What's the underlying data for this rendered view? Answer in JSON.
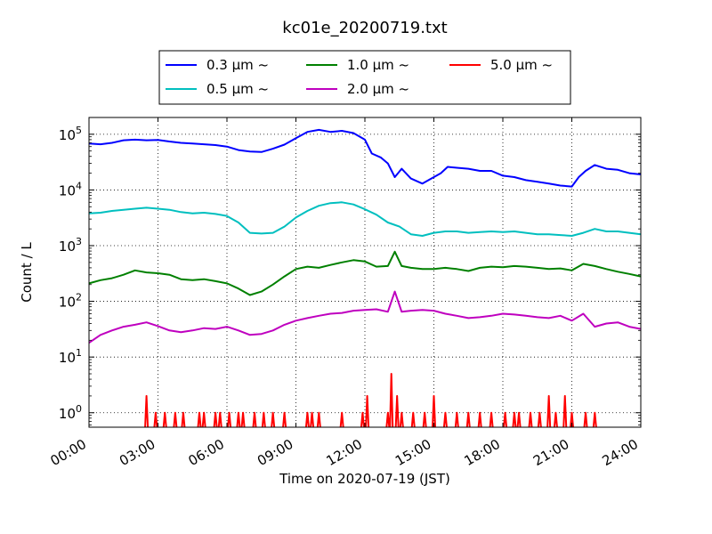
{
  "chart_data": {
    "type": "line",
    "title": "kc01e_20200719.txt",
    "xlabel": "Time on 2020-07-19 (JST)",
    "ylabel": "Count / L",
    "yscale": "log",
    "ylim": [
      0.55,
      200000
    ],
    "xlim_hours": [
      0,
      24
    ],
    "x_ticks": [
      "00:00",
      "03:00",
      "06:00",
      "09:00",
      "12:00",
      "15:00",
      "18:00",
      "21:00",
      "24:00"
    ],
    "y_tick_values": [
      1,
      10,
      100,
      1000,
      10000,
      100000
    ],
    "y_tick_labels": [
      {
        "base": "10",
        "exp": "0"
      },
      {
        "base": "10",
        "exp": "1"
      },
      {
        "base": "10",
        "exp": "2"
      },
      {
        "base": "10",
        "exp": "3"
      },
      {
        "base": "10",
        "exp": "4"
      },
      {
        "base": "10",
        "exp": "5"
      }
    ],
    "grid": true,
    "legend_position": "top-center",
    "series": [
      {
        "name": "0.3 μm ~",
        "color": "#0000ff",
        "points": [
          [
            0,
            68000
          ],
          [
            0.5,
            66000
          ],
          [
            1,
            70000
          ],
          [
            1.5,
            78000
          ],
          [
            2,
            80000
          ],
          [
            2.5,
            78000
          ],
          [
            3,
            79000
          ],
          [
            3.5,
            74000
          ],
          [
            4,
            70000
          ],
          [
            4.5,
            68000
          ],
          [
            5,
            66000
          ],
          [
            5.5,
            64000
          ],
          [
            6,
            60000
          ],
          [
            6.5,
            52000
          ],
          [
            7,
            49000
          ],
          [
            7.5,
            48000
          ],
          [
            8,
            55000
          ],
          [
            8.5,
            65000
          ],
          [
            9,
            85000
          ],
          [
            9.5,
            110000
          ],
          [
            10,
            120000
          ],
          [
            10.5,
            110000
          ],
          [
            11,
            115000
          ],
          [
            11.5,
            105000
          ],
          [
            12,
            80000
          ],
          [
            12.3,
            45000
          ],
          [
            12.7,
            38000
          ],
          [
            13,
            30000
          ],
          [
            13.3,
            17000
          ],
          [
            13.6,
            24000
          ],
          [
            14,
            16000
          ],
          [
            14.5,
            13000
          ],
          [
            15,
            17000
          ],
          [
            15.3,
            20000
          ],
          [
            15.6,
            26000
          ],
          [
            16,
            25000
          ],
          [
            16.5,
            24000
          ],
          [
            17,
            22000
          ],
          [
            17.5,
            22000
          ],
          [
            18,
            18000
          ],
          [
            18.5,
            17000
          ],
          [
            19,
            15000
          ],
          [
            19.5,
            14000
          ],
          [
            20,
            13000
          ],
          [
            20.5,
            12000
          ],
          [
            21,
            11500
          ],
          [
            21.3,
            17000
          ],
          [
            21.6,
            22000
          ],
          [
            22,
            28000
          ],
          [
            22.5,
            24000
          ],
          [
            23,
            23000
          ],
          [
            23.5,
            20000
          ],
          [
            24,
            19000
          ]
        ]
      },
      {
        "name": "0.5 μm ~",
        "color": "#00bfbf",
        "points": [
          [
            0,
            3800
          ],
          [
            0.5,
            3900
          ],
          [
            1,
            4200
          ],
          [
            1.5,
            4400
          ],
          [
            2,
            4600
          ],
          [
            2.5,
            4800
          ],
          [
            3,
            4600
          ],
          [
            3.5,
            4400
          ],
          [
            4,
            4000
          ],
          [
            4.5,
            3800
          ],
          [
            5,
            3900
          ],
          [
            5.5,
            3700
          ],
          [
            6,
            3400
          ],
          [
            6.5,
            2600
          ],
          [
            7,
            1700
          ],
          [
            7.5,
            1650
          ],
          [
            8,
            1700
          ],
          [
            8.5,
            2200
          ],
          [
            9,
            3200
          ],
          [
            9.5,
            4200
          ],
          [
            10,
            5200
          ],
          [
            10.5,
            5800
          ],
          [
            11,
            6000
          ],
          [
            11.5,
            5500
          ],
          [
            12,
            4500
          ],
          [
            12.5,
            3600
          ],
          [
            13,
            2600
          ],
          [
            13.5,
            2200
          ],
          [
            14,
            1600
          ],
          [
            14.5,
            1500
          ],
          [
            15,
            1700
          ],
          [
            15.5,
            1800
          ],
          [
            16,
            1800
          ],
          [
            16.5,
            1700
          ],
          [
            17,
            1750
          ],
          [
            17.5,
            1800
          ],
          [
            18,
            1750
          ],
          [
            18.5,
            1800
          ],
          [
            19,
            1700
          ],
          [
            19.5,
            1600
          ],
          [
            20,
            1600
          ],
          [
            20.5,
            1550
          ],
          [
            21,
            1500
          ],
          [
            21.5,
            1700
          ],
          [
            22,
            2000
          ],
          [
            22.5,
            1800
          ],
          [
            23,
            1800
          ],
          [
            23.5,
            1700
          ],
          [
            24,
            1600
          ]
        ]
      },
      {
        "name": "1.0 μm ~",
        "color": "#008000",
        "points": [
          [
            0,
            210
          ],
          [
            0.5,
            240
          ],
          [
            1,
            260
          ],
          [
            1.5,
            300
          ],
          [
            2,
            360
          ],
          [
            2.5,
            330
          ],
          [
            3,
            320
          ],
          [
            3.5,
            300
          ],
          [
            4,
            250
          ],
          [
            4.5,
            240
          ],
          [
            5,
            250
          ],
          [
            5.5,
            230
          ],
          [
            6,
            210
          ],
          [
            6.5,
            170
          ],
          [
            7,
            130
          ],
          [
            7.5,
            150
          ],
          [
            8,
            200
          ],
          [
            8.5,
            280
          ],
          [
            9,
            380
          ],
          [
            9.5,
            420
          ],
          [
            10,
            400
          ],
          [
            10.5,
            450
          ],
          [
            11,
            500
          ],
          [
            11.5,
            550
          ],
          [
            12,
            520
          ],
          [
            12.5,
            420
          ],
          [
            13,
            430
          ],
          [
            13.3,
            780
          ],
          [
            13.6,
            430
          ],
          [
            14,
            400
          ],
          [
            14.5,
            380
          ],
          [
            15,
            380
          ],
          [
            15.5,
            400
          ],
          [
            16,
            380
          ],
          [
            16.5,
            350
          ],
          [
            17,
            400
          ],
          [
            17.5,
            420
          ],
          [
            18,
            410
          ],
          [
            18.5,
            430
          ],
          [
            19,
            420
          ],
          [
            19.5,
            400
          ],
          [
            20,
            380
          ],
          [
            20.5,
            390
          ],
          [
            21,
            360
          ],
          [
            21.5,
            470
          ],
          [
            22,
            430
          ],
          [
            22.5,
            380
          ],
          [
            23,
            340
          ],
          [
            23.5,
            310
          ],
          [
            24,
            280
          ]
        ]
      },
      {
        "name": "2.0 μm ~",
        "color": "#bf00bf",
        "points": [
          [
            0,
            18
          ],
          [
            0.5,
            25
          ],
          [
            1,
            30
          ],
          [
            1.5,
            35
          ],
          [
            2,
            38
          ],
          [
            2.5,
            42
          ],
          [
            3,
            36
          ],
          [
            3.5,
            30
          ],
          [
            4,
            28
          ],
          [
            4.5,
            30
          ],
          [
            5,
            33
          ],
          [
            5.5,
            32
          ],
          [
            6,
            35
          ],
          [
            6.5,
            30
          ],
          [
            7,
            25
          ],
          [
            7.5,
            26
          ],
          [
            8,
            30
          ],
          [
            8.5,
            38
          ],
          [
            9,
            45
          ],
          [
            9.5,
            50
          ],
          [
            10,
            55
          ],
          [
            10.5,
            60
          ],
          [
            11,
            62
          ],
          [
            11.5,
            68
          ],
          [
            12,
            70
          ],
          [
            12.5,
            72
          ],
          [
            13,
            65
          ],
          [
            13.3,
            150
          ],
          [
            13.6,
            65
          ],
          [
            14,
            68
          ],
          [
            14.5,
            70
          ],
          [
            15,
            68
          ],
          [
            15.5,
            60
          ],
          [
            16,
            55
          ],
          [
            16.5,
            50
          ],
          [
            17,
            52
          ],
          [
            17.5,
            55
          ],
          [
            18,
            60
          ],
          [
            18.5,
            58
          ],
          [
            19,
            55
          ],
          [
            19.5,
            52
          ],
          [
            20,
            50
          ],
          [
            20.5,
            55
          ],
          [
            21,
            45
          ],
          [
            21.5,
            60
          ],
          [
            22,
            35
          ],
          [
            22.5,
            40
          ],
          [
            23,
            42
          ],
          [
            23.5,
            35
          ],
          [
            24,
            32
          ]
        ]
      },
      {
        "name": "5.0 μm ~",
        "color": "#ff0000",
        "points": [
          [
            2.5,
            2
          ],
          [
            2.9,
            1
          ],
          [
            3.3,
            1
          ],
          [
            3.75,
            1
          ],
          [
            4.1,
            1
          ],
          [
            4.8,
            1
          ],
          [
            5,
            1
          ],
          [
            5.5,
            1
          ],
          [
            5.7,
            1
          ],
          [
            6.1,
            1
          ],
          [
            6.5,
            1
          ],
          [
            6.7,
            1
          ],
          [
            7.2,
            1
          ],
          [
            7.6,
            1
          ],
          [
            8,
            1
          ],
          [
            8.5,
            1
          ],
          [
            9.5,
            1
          ],
          [
            9.7,
            1
          ],
          [
            10,
            1
          ],
          [
            11,
            1
          ],
          [
            11.9,
            1
          ],
          [
            12.1,
            2
          ],
          [
            13,
            1
          ],
          [
            13.15,
            5
          ],
          [
            13.4,
            2
          ],
          [
            13.6,
            1
          ],
          [
            14.1,
            1
          ],
          [
            14.6,
            1
          ],
          [
            15,
            2
          ],
          [
            15.5,
            1
          ],
          [
            16,
            1
          ],
          [
            16.5,
            1
          ],
          [
            17,
            1
          ],
          [
            17.5,
            1
          ],
          [
            18.1,
            1
          ],
          [
            18.5,
            1
          ],
          [
            18.7,
            1
          ],
          [
            19.2,
            1
          ],
          [
            19.6,
            1
          ],
          [
            20,
            2
          ],
          [
            20.3,
            1
          ],
          [
            20.7,
            2
          ],
          [
            21,
            1
          ],
          [
            21.6,
            1
          ],
          [
            22,
            1
          ]
        ]
      }
    ]
  }
}
